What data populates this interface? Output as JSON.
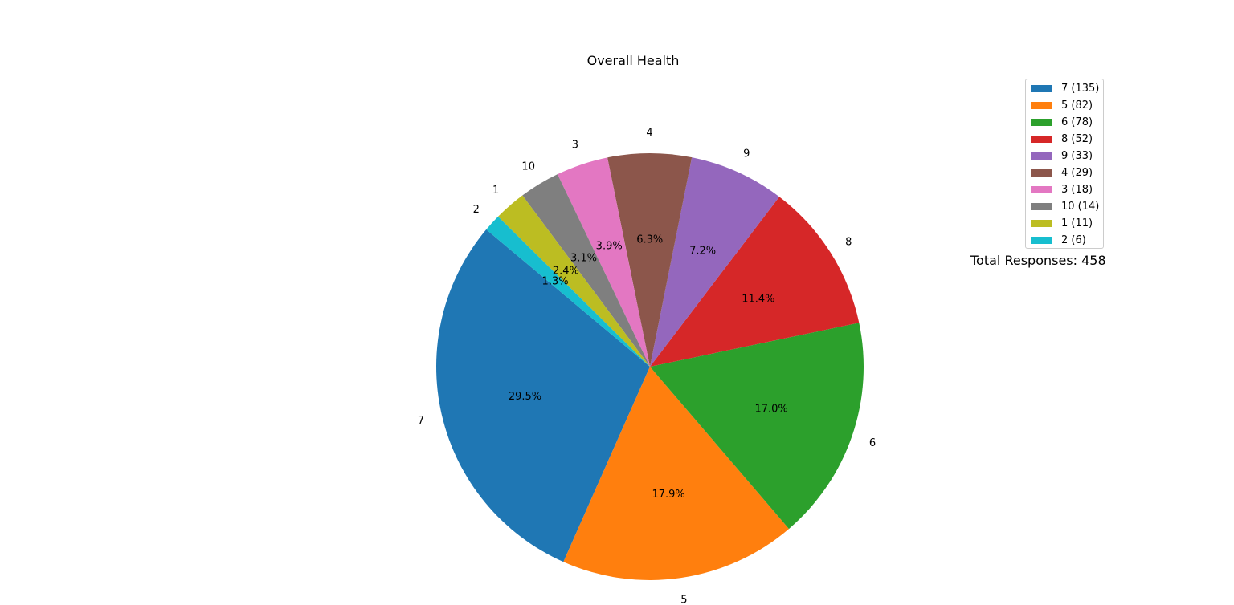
{
  "chart_data": {
    "type": "pie",
    "title": "Overall Health",
    "slices": [
      {
        "label": "7",
        "value": 135,
        "pct": "29.5%",
        "legend": "7 (135)",
        "color": "#1f77b4"
      },
      {
        "label": "5",
        "value": 82,
        "pct": "17.9%",
        "legend": "5 (82)",
        "color": "#ff7f0e"
      },
      {
        "label": "6",
        "value": 78,
        "pct": "17.0%",
        "legend": "6 (78)",
        "color": "#2ca02c"
      },
      {
        "label": "8",
        "value": 52,
        "pct": "11.4%",
        "legend": "8 (52)",
        "color": "#d62728"
      },
      {
        "label": "9",
        "value": 33,
        "pct": "7.2%",
        "legend": "9 (33)",
        "color": "#9467bd"
      },
      {
        "label": "4",
        "value": 29,
        "pct": "6.3%",
        "legend": "4 (29)",
        "color": "#8c564b"
      },
      {
        "label": "3",
        "value": 18,
        "pct": "3.9%",
        "legend": "3 (18)",
        "color": "#e377c2"
      },
      {
        "label": "10",
        "value": 14,
        "pct": "3.1%",
        "legend": "10 (14)",
        "color": "#7f7f7f"
      },
      {
        "label": "1",
        "value": 11,
        "pct": "2.4%",
        "legend": "1 (11)",
        "color": "#bcbd22"
      },
      {
        "label": "2",
        "value": 6,
        "pct": "1.3%",
        "legend": "2 (6)",
        "color": "#17becf"
      }
    ],
    "start_angle_deg": 140,
    "direction": "counterclockwise",
    "legend_placement": "top-right",
    "total_text": "Total Responses: 458"
  }
}
